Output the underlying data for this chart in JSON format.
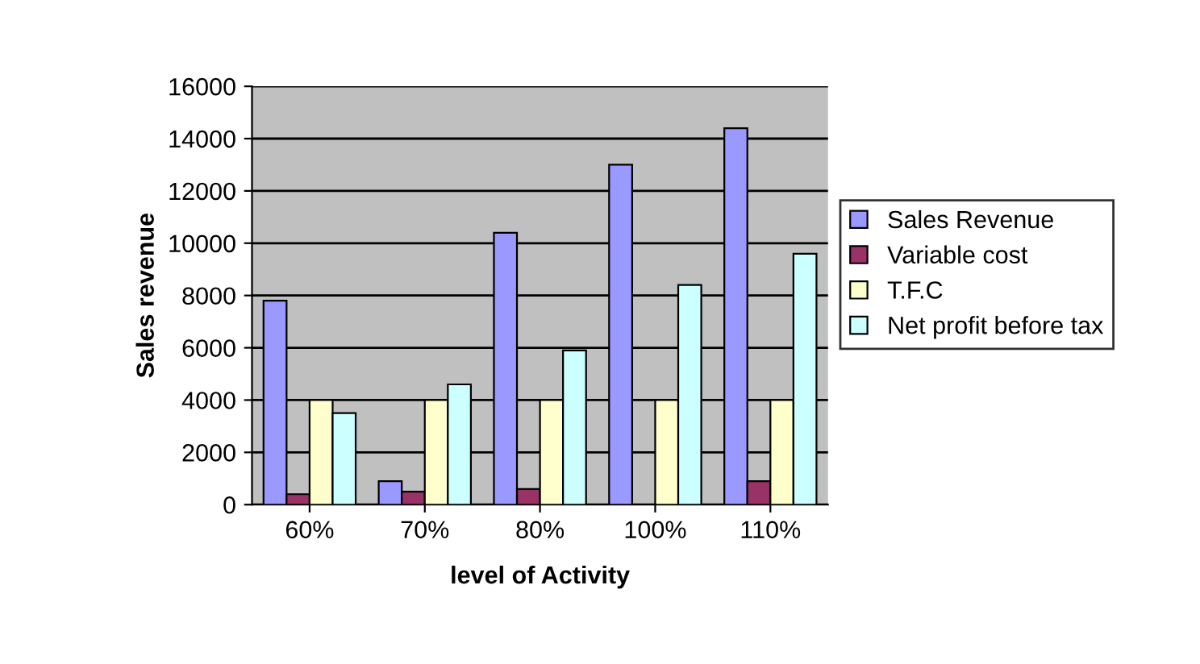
{
  "chart_data": {
    "type": "bar",
    "xlabel": "level of Activity",
    "ylabel": "Sales revenue",
    "categories": [
      "60%",
      "70%",
      "80%",
      "100%",
      "110%"
    ],
    "series": [
      {
        "name": "Sales Revenue",
        "color": "#9999ff",
        "values": [
          7800,
          900,
          10400,
          13000,
          14400
        ]
      },
      {
        "name": "Variable cost",
        "color": "#993366",
        "values": [
          400,
          500,
          600,
          null,
          900
        ]
      },
      {
        "name": "T.F.C",
        "color": "#ffffcc",
        "values": [
          4000,
          4000,
          4000,
          4000,
          4000
        ]
      },
      {
        "name": "Net profit before tax",
        "color": "#ccffff",
        "values": [
          3500,
          4600,
          5900,
          8400,
          9600
        ]
      }
    ],
    "ylim": [
      0,
      16000
    ],
    "yticks": [
      0,
      2000,
      4000,
      6000,
      8000,
      10000,
      12000,
      14000,
      16000
    ],
    "grid": "y",
    "legend": "right"
  }
}
